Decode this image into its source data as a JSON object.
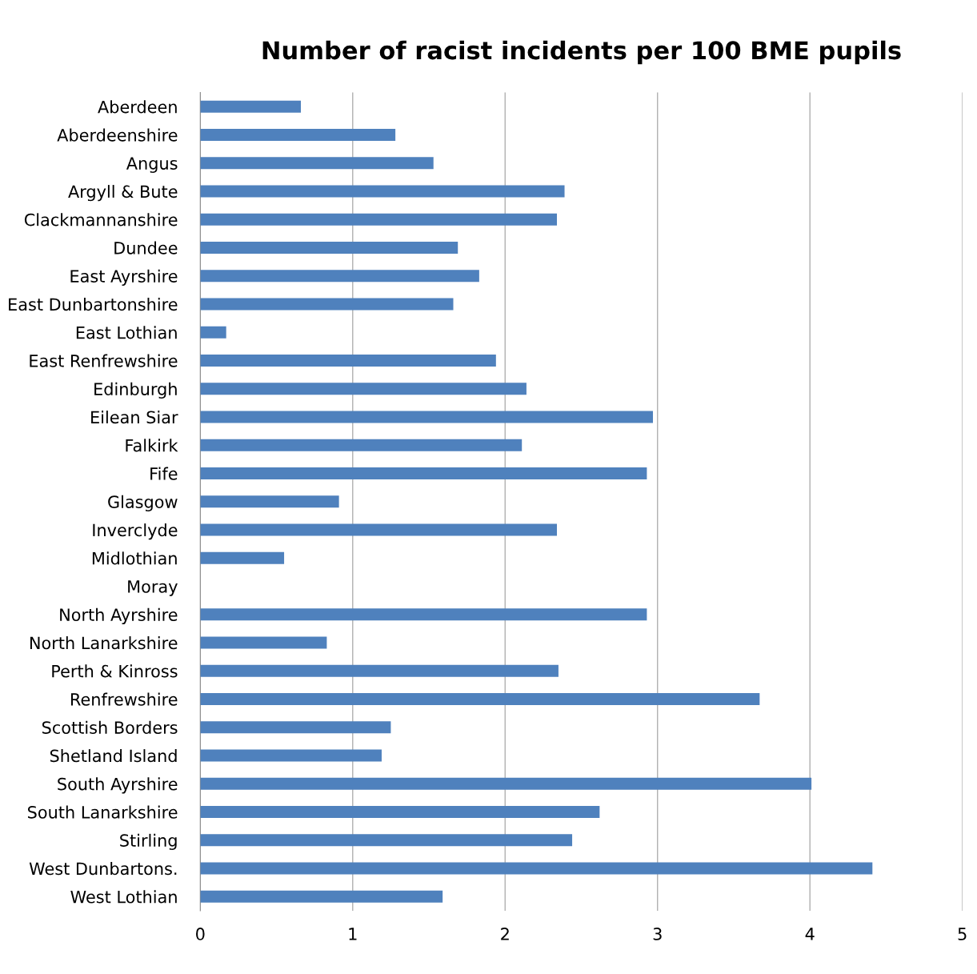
{
  "chart_data": {
    "type": "bar",
    "orientation": "horizontal",
    "title": "Number of racist incidents per 100 BME pupils",
    "categories": [
      "Aberdeen",
      "Aberdeenshire",
      "Angus",
      "Argyll & Bute",
      "Clackmannanshire",
      "Dundee",
      "East Ayrshire",
      "East Dunbartonshire",
      "East Lothian",
      "East Renfrewshire",
      "Edinburgh",
      "Eilean Siar",
      "Falkirk",
      "Fife",
      "Glasgow",
      "Inverclyde",
      "Midlothian",
      "Moray",
      "North Ayrshire",
      "North Lanarkshire",
      "Perth & Kinross",
      "Renfrewshire",
      "Scottish Borders",
      "Shetland Island",
      "South Ayrshire",
      "South Lanarkshire",
      "Stirling",
      "West Dunbartons.",
      "West Lothian"
    ],
    "values": [
      0.66,
      1.28,
      1.53,
      2.39,
      2.34,
      1.69,
      1.83,
      1.66,
      0.17,
      1.94,
      2.14,
      2.97,
      2.11,
      2.93,
      0.91,
      2.34,
      0.55,
      0,
      2.93,
      0.83,
      2.35,
      3.67,
      1.25,
      1.19,
      4.01,
      2.62,
      2.44,
      4.41,
      1.59
    ],
    "color": "#4f81bd",
    "xlim": [
      0,
      5
    ],
    "xticks": [
      0,
      1,
      2,
      3,
      4,
      5
    ],
    "grid": "x",
    "legend": false
  }
}
